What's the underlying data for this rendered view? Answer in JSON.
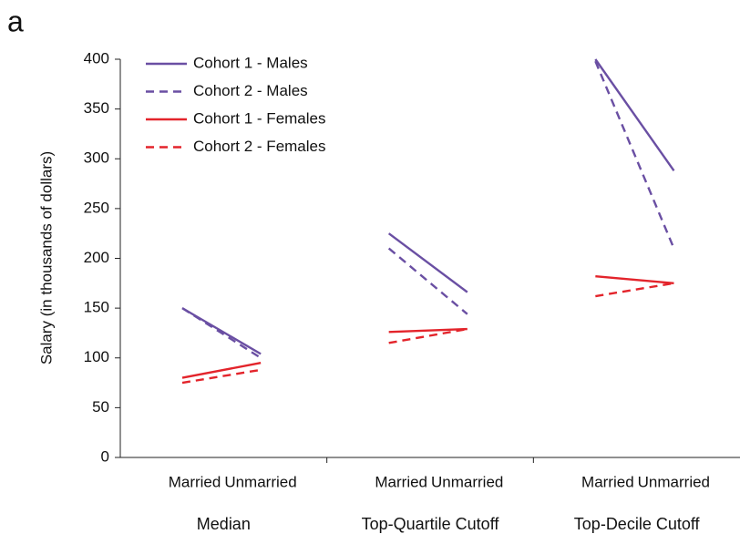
{
  "chart_data": {
    "type": "line",
    "panel_label": "a",
    "ylabel": "Salary (in thousands of dollars)",
    "categories": [
      "Married",
      "Unmarried",
      "Married",
      "Unmarried",
      "Married",
      "Unmarried"
    ],
    "groups": [
      "Median",
      "Top-Quartile Cutoff",
      "Top-Decile Cutoff"
    ],
    "series": [
      {
        "name": "Cohort 1 - Males",
        "color": "#6a4fa3",
        "linestyle": "solid",
        "values": [
          150,
          104,
          225,
          166,
          400,
          288
        ]
      },
      {
        "name": "Cohort 2 - Males",
        "color": "#6a4fa3",
        "linestyle": "dashed",
        "values": [
          150,
          100,
          210,
          144,
          398,
          210
        ]
      },
      {
        "name": "Cohort 1 - Females",
        "color": "#e3242b",
        "linestyle": "solid",
        "values": [
          80,
          95,
          126,
          129,
          182,
          175
        ]
      },
      {
        "name": "Cohort 2 - Females",
        "color": "#e3242b",
        "linestyle": "dashed",
        "values": [
          75,
          88,
          115,
          129,
          162,
          175
        ]
      }
    ],
    "ylim": [
      0,
      400
    ],
    "yticks": [
      0,
      50,
      100,
      150,
      200,
      250,
      300,
      350,
      400
    ],
    "legend": "upper left"
  }
}
